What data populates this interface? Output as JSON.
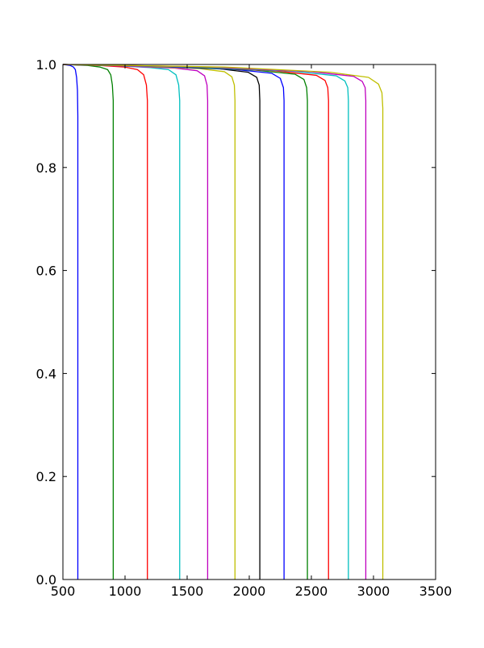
{
  "chart_data": {
    "type": "line",
    "title": "",
    "xlabel": "",
    "ylabel": "",
    "xlim": [
      500,
      3500
    ],
    "ylim": [
      0.0,
      1.0
    ],
    "xticks": [
      500,
      1000,
      1500,
      2000,
      2500,
      3000,
      3500
    ],
    "xtick_labels": [
      "500",
      "1000",
      "1500",
      "2000",
      "2500",
      "3000",
      "3500"
    ],
    "yticks": [
      0.0,
      0.2,
      0.4,
      0.6,
      0.8,
      1.0
    ],
    "ytick_labels": [
      "0.0",
      "0.2",
      "0.4",
      "0.6",
      "0.8",
      "1.0"
    ],
    "grid": false,
    "legend": "none",
    "series": [
      {
        "color": "#0000ff",
        "points": [
          [
            500,
            1.0
          ],
          [
            560,
            0.998
          ],
          [
            585,
            0.995
          ],
          [
            600,
            0.99
          ],
          [
            610,
            0.975
          ],
          [
            617,
            0.95
          ],
          [
            620,
            0.9
          ],
          [
            620,
            0.0
          ]
        ]
      },
      {
        "color": "#008000",
        "points": [
          [
            500,
            1.0
          ],
          [
            700,
            0.998
          ],
          [
            800,
            0.995
          ],
          [
            860,
            0.99
          ],
          [
            885,
            0.98
          ],
          [
            898,
            0.96
          ],
          [
            905,
            0.93
          ],
          [
            905,
            0.0
          ]
        ]
      },
      {
        "color": "#ff0000",
        "points": [
          [
            500,
            1.0
          ],
          [
            800,
            0.998
          ],
          [
            1000,
            0.995
          ],
          [
            1100,
            0.99
          ],
          [
            1150,
            0.98
          ],
          [
            1172,
            0.96
          ],
          [
            1180,
            0.93
          ],
          [
            1180,
            0.0
          ]
        ]
      },
      {
        "color": "#00bfbf",
        "points": [
          [
            500,
            1.0
          ],
          [
            900,
            0.998
          ],
          [
            1200,
            0.994
          ],
          [
            1350,
            0.99
          ],
          [
            1410,
            0.98
          ],
          [
            1432,
            0.96
          ],
          [
            1440,
            0.93
          ],
          [
            1440,
            0.0
          ]
        ]
      },
      {
        "color": "#bf00bf",
        "points": [
          [
            500,
            1.0
          ],
          [
            1000,
            0.997
          ],
          [
            1400,
            0.993
          ],
          [
            1580,
            0.988
          ],
          [
            1640,
            0.978
          ],
          [
            1660,
            0.96
          ],
          [
            1665,
            0.93
          ],
          [
            1665,
            0.0
          ]
        ]
      },
      {
        "color": "#bfbf00",
        "points": [
          [
            500,
            1.0
          ],
          [
            1100,
            0.997
          ],
          [
            1600,
            0.992
          ],
          [
            1800,
            0.986
          ],
          [
            1860,
            0.976
          ],
          [
            1880,
            0.96
          ],
          [
            1885,
            0.93
          ],
          [
            1885,
            0.0
          ]
        ]
      },
      {
        "color": "#000000",
        "points": [
          [
            500,
            1.0
          ],
          [
            1200,
            0.997
          ],
          [
            1750,
            0.992
          ],
          [
            1990,
            0.985
          ],
          [
            2060,
            0.975
          ],
          [
            2080,
            0.96
          ],
          [
            2085,
            0.93
          ],
          [
            2085,
            0.0
          ]
        ]
      },
      {
        "color": "#0000ff",
        "points": [
          [
            500,
            1.0
          ],
          [
            1300,
            0.996
          ],
          [
            1900,
            0.99
          ],
          [
            2180,
            0.983
          ],
          [
            2250,
            0.973
          ],
          [
            2275,
            0.955
          ],
          [
            2280,
            0.93
          ],
          [
            2280,
            0.0
          ]
        ]
      },
      {
        "color": "#008000",
        "points": [
          [
            500,
            1.0
          ],
          [
            1400,
            0.996
          ],
          [
            2050,
            0.989
          ],
          [
            2370,
            0.981
          ],
          [
            2440,
            0.971
          ],
          [
            2462,
            0.955
          ],
          [
            2468,
            0.93
          ],
          [
            2468,
            0.0
          ]
        ]
      },
      {
        "color": "#ff0000",
        "points": [
          [
            500,
            1.0
          ],
          [
            1500,
            0.996
          ],
          [
            2200,
            0.988
          ],
          [
            2540,
            0.979
          ],
          [
            2610,
            0.969
          ],
          [
            2632,
            0.955
          ],
          [
            2638,
            0.93
          ],
          [
            2638,
            0.0
          ]
        ]
      },
      {
        "color": "#00bfbf",
        "points": [
          [
            500,
            1.0
          ],
          [
            1600,
            0.995
          ],
          [
            2350,
            0.987
          ],
          [
            2700,
            0.978
          ],
          [
            2770,
            0.968
          ],
          [
            2793,
            0.955
          ],
          [
            2798,
            0.93
          ],
          [
            2798,
            0.0
          ]
        ]
      },
      {
        "color": "#bf00bf",
        "points": [
          [
            500,
            1.0
          ],
          [
            1700,
            0.995
          ],
          [
            2500,
            0.986
          ],
          [
            2840,
            0.977
          ],
          [
            2910,
            0.967
          ],
          [
            2933,
            0.955
          ],
          [
            2938,
            0.93
          ],
          [
            2938,
            0.0
          ]
        ]
      },
      {
        "color": "#bfbf00",
        "points": [
          [
            500,
            1.0
          ],
          [
            1800,
            0.995
          ],
          [
            2650,
            0.985
          ],
          [
            2960,
            0.975
          ],
          [
            3040,
            0.962
          ],
          [
            3068,
            0.945
          ],
          [
            3075,
            0.915
          ],
          [
            3075,
            0.0
          ]
        ]
      }
    ]
  }
}
